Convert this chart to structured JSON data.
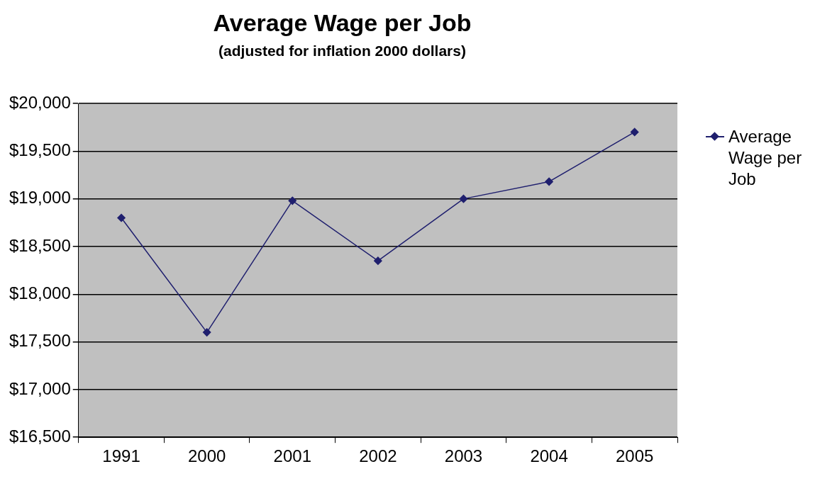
{
  "chart_data": {
    "type": "line",
    "title": "Average Wage per Job",
    "subtitle": "(adjusted for inflation 2000 dollars)",
    "categories": [
      "1991",
      "2000",
      "2001",
      "2002",
      "2003",
      "2004",
      "2005"
    ],
    "series": [
      {
        "name": "Average Wage per Job",
        "color": "#1f1f6e",
        "values": [
          18800,
          17600,
          18980,
          18350,
          19000,
          19180,
          19700
        ]
      }
    ],
    "ylim": [
      16500,
      20000
    ],
    "yticks": [
      {
        "value": 16500,
        "label": "$16,500"
      },
      {
        "value": 17000,
        "label": "$17,000"
      },
      {
        "value": 17500,
        "label": "$17,500"
      },
      {
        "value": 18000,
        "label": "$18,000"
      },
      {
        "value": 18500,
        "label": "$18,500"
      },
      {
        "value": 19000,
        "label": "$19,000"
      },
      {
        "value": 19500,
        "label": "$19,500"
      },
      {
        "value": 20000,
        "label": "$20,000"
      }
    ],
    "grid": "y",
    "legend": "right",
    "marker": "diamond",
    "line_style": "solid"
  }
}
